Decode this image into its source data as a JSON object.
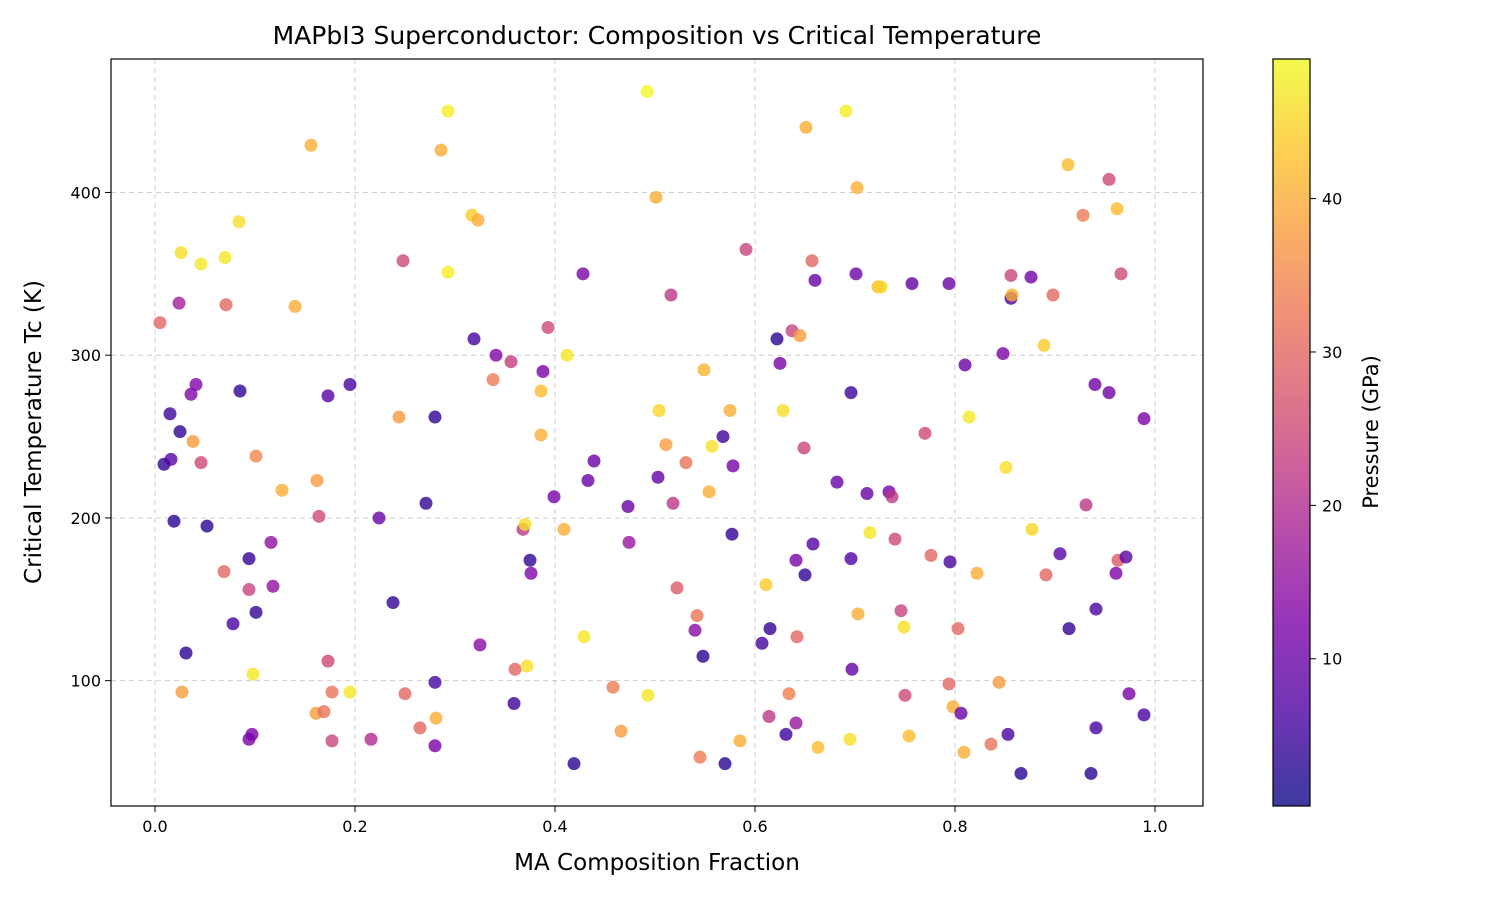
{
  "chart_data": {
    "type": "scatter",
    "title": "MAPbI3 Superconductor: Composition vs Critical Temperature",
    "xlabel": "MA Composition Fraction",
    "ylabel": "Critical Temperature Tc (K)",
    "xlim": [
      -0.044,
      1.048
    ],
    "ylim": [
      23,
      482
    ],
    "xticks": [
      "0.0",
      "0.2",
      "0.4",
      "0.6",
      "0.8",
      "1.0"
    ],
    "xtick_values": [
      0,
      0.2,
      0.4,
      0.6,
      0.8,
      1.0
    ],
    "yticks": [
      "100",
      "200",
      "300",
      "400"
    ],
    "ytick_values": [
      100,
      200,
      300,
      400
    ],
    "grid": true,
    "colormap": "plasma",
    "colorbar": {
      "label": "Pressure (GPa)",
      "range": [
        0.4,
        49.1
      ],
      "ticks": [
        "10",
        "20",
        "30",
        "40"
      ],
      "tick_values": [
        10,
        20,
        30,
        40
      ]
    },
    "points": {
      "x": [
        0.005,
        0.009,
        0.015,
        0.016,
        0.019,
        0.024,
        0.025,
        0.026,
        0.027,
        0.031,
        0.036,
        0.038,
        0.041,
        0.046,
        0.046,
        0.052,
        0.069,
        0.07,
        0.071,
        0.078,
        0.084,
        0.085,
        0.094,
        0.094,
        0.094,
        0.097,
        0.098,
        0.101,
        0.101,
        0.116,
        0.118,
        0.127,
        0.14,
        0.156,
        0.161,
        0.162,
        0.164,
        0.169,
        0.173,
        0.173,
        0.177,
        0.177,
        0.195,
        0.195,
        0.216,
        0.224,
        0.238,
        0.244,
        0.248,
        0.25,
        0.265,
        0.271,
        0.28,
        0.28,
        0.28,
        0.281,
        0.286,
        0.293,
        0.293,
        0.317,
        0.319,
        0.323,
        0.325,
        0.338,
        0.341,
        0.356,
        0.359,
        0.36,
        0.368,
        0.37,
        0.372,
        0.375,
        0.376,
        0.386,
        0.386,
        0.388,
        0.393,
        0.399,
        0.409,
        0.412,
        0.419,
        0.428,
        0.429,
        0.433,
        0.439,
        0.458,
        0.466,
        0.473,
        0.474,
        0.492,
        0.493,
        0.501,
        0.503,
        0.504,
        0.511,
        0.516,
        0.518,
        0.522,
        0.531,
        0.54,
        0.542,
        0.545,
        0.548,
        0.549,
        0.554,
        0.557,
        0.568,
        0.57,
        0.575,
        0.577,
        0.578,
        0.585,
        0.591,
        0.607,
        0.611,
        0.614,
        0.615,
        0.622,
        0.625,
        0.628,
        0.631,
        0.634,
        0.637,
        0.641,
        0.641,
        0.642,
        0.645,
        0.649,
        0.65,
        0.651,
        0.657,
        0.658,
        0.66,
        0.663,
        0.682,
        0.691,
        0.695,
        0.696,
        0.696,
        0.697,
        0.701,
        0.702,
        0.703,
        0.712,
        0.715,
        0.723,
        0.726,
        0.734,
        0.737,
        0.74,
        0.746,
        0.749,
        0.75,
        0.754,
        0.757,
        0.77,
        0.776,
        0.794,
        0.794,
        0.795,
        0.798,
        0.803,
        0.806,
        0.809,
        0.81,
        0.814,
        0.822,
        0.836,
        0.844,
        0.848,
        0.851,
        0.853,
        0.856,
        0.856,
        0.857,
        0.866,
        0.876,
        0.877,
        0.889,
        0.891,
        0.898,
        0.905,
        0.913,
        0.914,
        0.928,
        0.931,
        0.936,
        0.94,
        0.941,
        0.941,
        0.954,
        0.954,
        0.961,
        0.962,
        0.963,
        0.966,
        0.971,
        0.974,
        0.989,
        0.989
      ],
      "y": [
        320,
        233,
        264,
        236,
        198,
        332,
        253,
        363,
        93,
        117,
        276,
        247,
        282,
        234,
        356,
        195,
        167,
        360,
        331,
        135,
        382,
        278,
        175,
        156,
        64,
        67,
        104,
        238,
        142,
        185,
        158,
        217,
        330,
        429,
        80,
        223,
        201,
        81,
        275,
        112,
        93,
        63,
        282,
        93,
        64,
        200,
        148,
        262,
        358,
        92,
        71,
        209,
        262,
        99,
        60,
        77,
        426,
        450,
        351,
        386,
        310,
        383,
        122,
        285,
        300,
        296,
        86,
        107,
        193,
        196,
        109,
        174,
        166,
        278,
        251,
        290,
        317,
        213,
        193,
        300,
        49,
        350,
        127,
        223,
        235,
        96,
        69,
        207,
        185,
        462,
        91,
        397,
        225,
        266,
        245,
        337,
        209,
        157,
        234,
        131,
        140,
        53,
        115,
        291,
        216,
        244,
        250,
        49,
        266,
        190,
        232,
        63,
        365,
        123,
        159,
        78,
        132,
        310,
        295,
        266,
        67,
        92,
        315,
        174,
        74,
        127,
        312,
        243,
        165,
        440,
        358,
        184,
        346,
        59,
        222,
        450,
        64,
        277,
        175,
        107,
        350,
        403,
        141,
        215,
        191,
        342,
        342,
        216,
        213,
        187,
        143,
        133,
        91,
        66,
        344,
        252,
        177,
        344,
        98,
        173,
        84,
        132,
        80,
        56,
        294,
        262,
        166,
        61,
        99,
        301,
        231,
        67,
        349,
        335,
        337,
        43,
        348,
        193,
        306,
        165,
        337,
        178,
        417,
        132,
        386,
        208,
        43,
        282,
        71,
        144,
        408,
        277,
        166,
        390,
        174,
        350,
        176,
        92,
        261,
        79
      ],
      "pressure": [
        30,
        4,
        5,
        8,
        3,
        18,
        4,
        46,
        38,
        3,
        13,
        38,
        13,
        25,
        47,
        3,
        30,
        47,
        30,
        6,
        46,
        4,
        4,
        24,
        12,
        12,
        47,
        35,
        4,
        15,
        15,
        40,
        40,
        40,
        38,
        38,
        25,
        32,
        8,
        25,
        32,
        24,
        6,
        47,
        20,
        10,
        4,
        38,
        25,
        30,
        30,
        4,
        4,
        6,
        12,
        40,
        40,
        48,
        48,
        44,
        6,
        40,
        14,
        33,
        13,
        23,
        5,
        30,
        22,
        46,
        46,
        4,
        13,
        42,
        40,
        12,
        25,
        12,
        40,
        47,
        3,
        12,
        47,
        10,
        10,
        33,
        38,
        10,
        16,
        49,
        47,
        40,
        9,
        45,
        38,
        22,
        22,
        28,
        32,
        14,
        32,
        33,
        3,
        41,
        40,
        46,
        5,
        3,
        40,
        4,
        12,
        40,
        24,
        6,
        44,
        22,
        4,
        3,
        12,
        46,
        5,
        34,
        24,
        12,
        16,
        30,
        38,
        24,
        4,
        40,
        30,
        7,
        10,
        42,
        10,
        48,
        46,
        5,
        7,
        9,
        11,
        40,
        40,
        10,
        47,
        42,
        45,
        11,
        22,
        25,
        24,
        46,
        25,
        42,
        9,
        25,
        30,
        10,
        30,
        6,
        40,
        30,
        10,
        40,
        10,
        47,
        40,
        32,
        38,
        12,
        46,
        6,
        24,
        6,
        40,
        3,
        11,
        45,
        44,
        30,
        30,
        8,
        42,
        4,
        33,
        22,
        3,
        11,
        6,
        6,
        25,
        11,
        13,
        42,
        28,
        25,
        8,
        12,
        12,
        6
      ]
    }
  }
}
